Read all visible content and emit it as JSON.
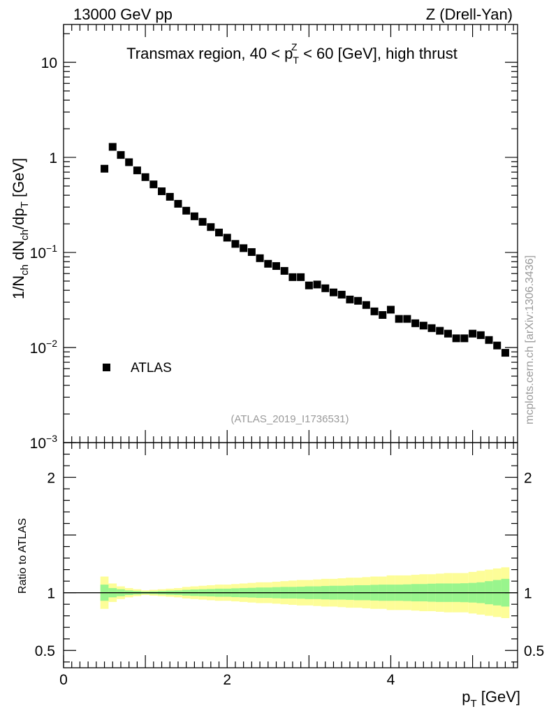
{
  "header": {
    "left": "13000 GeV pp",
    "right": "Z (Drell-Yan)",
    "region": "Transmax region, 40 < p",
    "region_sup": "Z",
    "region_sub": "T",
    "region_rest": " < 60 [GeV], high thrust"
  },
  "side_label": "mcplots.cern.ch [arXiv:1306.3436]",
  "analysis_id": "(ATLAS_2019_I1736531)",
  "colors": {
    "marker": "#000000",
    "band_inner": "#99f58d",
    "band_outer": "#fdfd98",
    "gray_text": "#9a9a9a"
  },
  "chart_data": [
    {
      "type": "scatter",
      "panel": "main",
      "yscale": "log",
      "ylim": [
        0.001,
        25
      ],
      "xlim": [
        0,
        5.55
      ],
      "ylabel": {
        "text_a": "1/N",
        "sub_a": "ch",
        "text_b": " dN",
        "sub_b": "ch",
        "text_c": "/dp",
        "sub_c": "T",
        "text_d": " [GeV]"
      },
      "yticks": [
        {
          "value": 10,
          "base": "10",
          "exp": ""
        },
        {
          "value": 1,
          "base": "1",
          "exp": ""
        },
        {
          "value": 0.1,
          "base": "10",
          "exp": "−1"
        },
        {
          "value": 0.01,
          "base": "10",
          "exp": "−2"
        },
        {
          "value": 0.001,
          "base": "10",
          "exp": "−3"
        }
      ],
      "legend": {
        "label": "ATLAS",
        "position": "left"
      },
      "series": [
        {
          "name": "ATLAS",
          "x": [
            0.5,
            0.6,
            0.7,
            0.8,
            0.9,
            1.0,
            1.1,
            1.2,
            1.3,
            1.4,
            1.5,
            1.6,
            1.7,
            1.8,
            1.9,
            2.0,
            2.1,
            2.2,
            2.3,
            2.4,
            2.5,
            2.6,
            2.7,
            2.8,
            2.9,
            3.0,
            3.1,
            3.2,
            3.3,
            3.4,
            3.5,
            3.6,
            3.7,
            3.8,
            3.9,
            4.0,
            4.1,
            4.2,
            4.3,
            4.4,
            4.5,
            4.6,
            4.7,
            4.8,
            4.9,
            5.0,
            5.1,
            5.2,
            5.3,
            5.4
          ],
          "values": [
            0.76,
            1.29,
            1.06,
            0.89,
            0.73,
            0.62,
            0.52,
            0.44,
            0.385,
            0.325,
            0.275,
            0.24,
            0.21,
            0.185,
            0.162,
            0.143,
            0.123,
            0.111,
            0.101,
            0.087,
            0.076,
            0.072,
            0.064,
            0.055,
            0.055,
            0.045,
            0.046,
            0.042,
            0.038,
            0.036,
            0.032,
            0.031,
            0.028,
            0.024,
            0.022,
            0.025,
            0.02,
            0.02,
            0.018,
            0.017,
            0.016,
            0.015,
            0.014,
            0.0125,
            0.0125,
            0.014,
            0.0135,
            0.012,
            0.0105,
            0.0088
          ]
        }
      ]
    },
    {
      "type": "area",
      "panel": "ratio",
      "ylabel": "Ratio to ATLAS",
      "ylim": [
        0.35,
        2.3
      ],
      "yticks": [
        {
          "value": 2,
          "label": "2"
        },
        {
          "value": 1,
          "label": "1"
        },
        {
          "value": 0.5,
          "label": "0.5"
        }
      ],
      "xlabel": {
        "text": "p",
        "sub": "T",
        "rest": " [GeV]"
      },
      "xticks": [
        {
          "value": 0,
          "label": "0"
        },
        {
          "value": 2,
          "label": "2"
        },
        {
          "value": 4,
          "label": "4"
        }
      ],
      "reference_line": 1,
      "series": [
        {
          "name": "inner",
          "x": [
            0.5,
            0.6,
            0.7,
            0.8,
            0.9,
            1.0,
            1.1,
            1.2,
            1.3,
            1.4,
            1.5,
            1.6,
            1.7,
            1.8,
            1.9,
            2.0,
            2.1,
            2.2,
            2.3,
            2.4,
            2.5,
            2.6,
            2.7,
            2.8,
            2.9,
            3.0,
            3.1,
            3.2,
            3.3,
            3.4,
            3.5,
            3.6,
            3.7,
            3.8,
            3.9,
            4.0,
            4.1,
            4.2,
            4.3,
            4.4,
            4.5,
            4.6,
            4.7,
            4.8,
            4.9,
            5.0,
            5.1,
            5.2,
            5.3,
            5.4
          ],
          "values": [
            0.07,
            0.04,
            0.03,
            0.02,
            0.015,
            0.01,
            0.012,
            0.015,
            0.018,
            0.02,
            0.025,
            0.028,
            0.03,
            0.032,
            0.035,
            0.035,
            0.038,
            0.04,
            0.042,
            0.045,
            0.045,
            0.048,
            0.05,
            0.05,
            0.052,
            0.055,
            0.055,
            0.058,
            0.06,
            0.06,
            0.062,
            0.065,
            0.065,
            0.068,
            0.07,
            0.07,
            0.07,
            0.072,
            0.075,
            0.075,
            0.078,
            0.08,
            0.08,
            0.08,
            0.082,
            0.085,
            0.09,
            0.1,
            0.11,
            0.12
          ]
        },
        {
          "name": "outer",
          "x": [
            0.5,
            0.6,
            0.7,
            0.8,
            0.9,
            1.0,
            1.1,
            1.2,
            1.3,
            1.4,
            1.5,
            1.6,
            1.7,
            1.8,
            1.9,
            2.0,
            2.1,
            2.2,
            2.3,
            2.4,
            2.5,
            2.6,
            2.7,
            2.8,
            2.9,
            3.0,
            3.1,
            3.2,
            3.3,
            3.4,
            3.5,
            3.6,
            3.7,
            3.8,
            3.9,
            4.0,
            4.1,
            4.2,
            4.3,
            4.4,
            4.5,
            4.6,
            4.7,
            4.8,
            4.9,
            5.0,
            5.1,
            5.2,
            5.3,
            5.4
          ],
          "values": [
            0.14,
            0.08,
            0.055,
            0.04,
            0.03,
            0.02,
            0.025,
            0.03,
            0.035,
            0.04,
            0.05,
            0.055,
            0.06,
            0.065,
            0.07,
            0.07,
            0.075,
            0.08,
            0.085,
            0.09,
            0.09,
            0.095,
            0.1,
            0.105,
            0.11,
            0.11,
            0.115,
            0.12,
            0.12,
            0.125,
            0.13,
            0.13,
            0.135,
            0.14,
            0.14,
            0.15,
            0.15,
            0.15,
            0.155,
            0.16,
            0.16,
            0.165,
            0.17,
            0.17,
            0.17,
            0.18,
            0.19,
            0.2,
            0.21,
            0.22
          ]
        }
      ]
    }
  ]
}
